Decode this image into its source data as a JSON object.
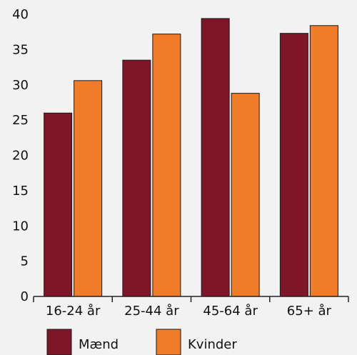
{
  "chart_data": {
    "type": "bar",
    "categories": [
      "16-24 år",
      "25-44 år",
      "45-64 år",
      "65+ år"
    ],
    "series": [
      {
        "name": "Mænd",
        "values": [
          26,
          33.5,
          39.4,
          37.3
        ],
        "color": "#7f1528"
      },
      {
        "name": "Kvinder",
        "values": [
          30.6,
          37.2,
          28.8,
          38.4
        ],
        "color": "#f07b28"
      }
    ],
    "yticks": [
      "0",
      "5",
      "10",
      "15",
      "20",
      "25",
      "30",
      "35",
      "40"
    ],
    "ylim": [
      0,
      40
    ],
    "grid": false,
    "legend_position": "bottom"
  }
}
